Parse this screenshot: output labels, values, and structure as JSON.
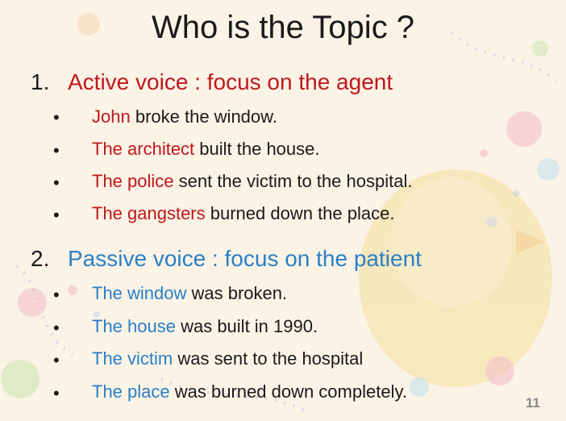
{
  "slide": {
    "title": "Who is the Topic ?",
    "page_number": "11",
    "colors": {
      "active_accent": "#c0171b",
      "passive_accent": "#2a7fc7",
      "text": "#1a1a1a",
      "background": "#fbf3e6"
    },
    "sections": [
      {
        "number": "1.",
        "heading": "Active voice : focus on the agent",
        "items": [
          {
            "highlight": "John",
            "rest": " broke the window."
          },
          {
            "highlight": "The architect",
            "rest": " built the house."
          },
          {
            "highlight": "The police",
            "rest": " sent the victim to the hospital."
          },
          {
            "highlight": "The gangsters",
            "rest": " burned down the place."
          }
        ]
      },
      {
        "number": "2.",
        "heading": "Passive voice : focus on the patient",
        "items": [
          {
            "highlight": "The window",
            "rest": " was broken."
          },
          {
            "highlight": "The house",
            "rest": " was built in 1990."
          },
          {
            "highlight": "The victim",
            "rest": " was sent to the hospital"
          },
          {
            "highlight": "The place",
            "rest": " was burned down completely."
          }
        ]
      }
    ],
    "bullet_glyph": "•"
  }
}
